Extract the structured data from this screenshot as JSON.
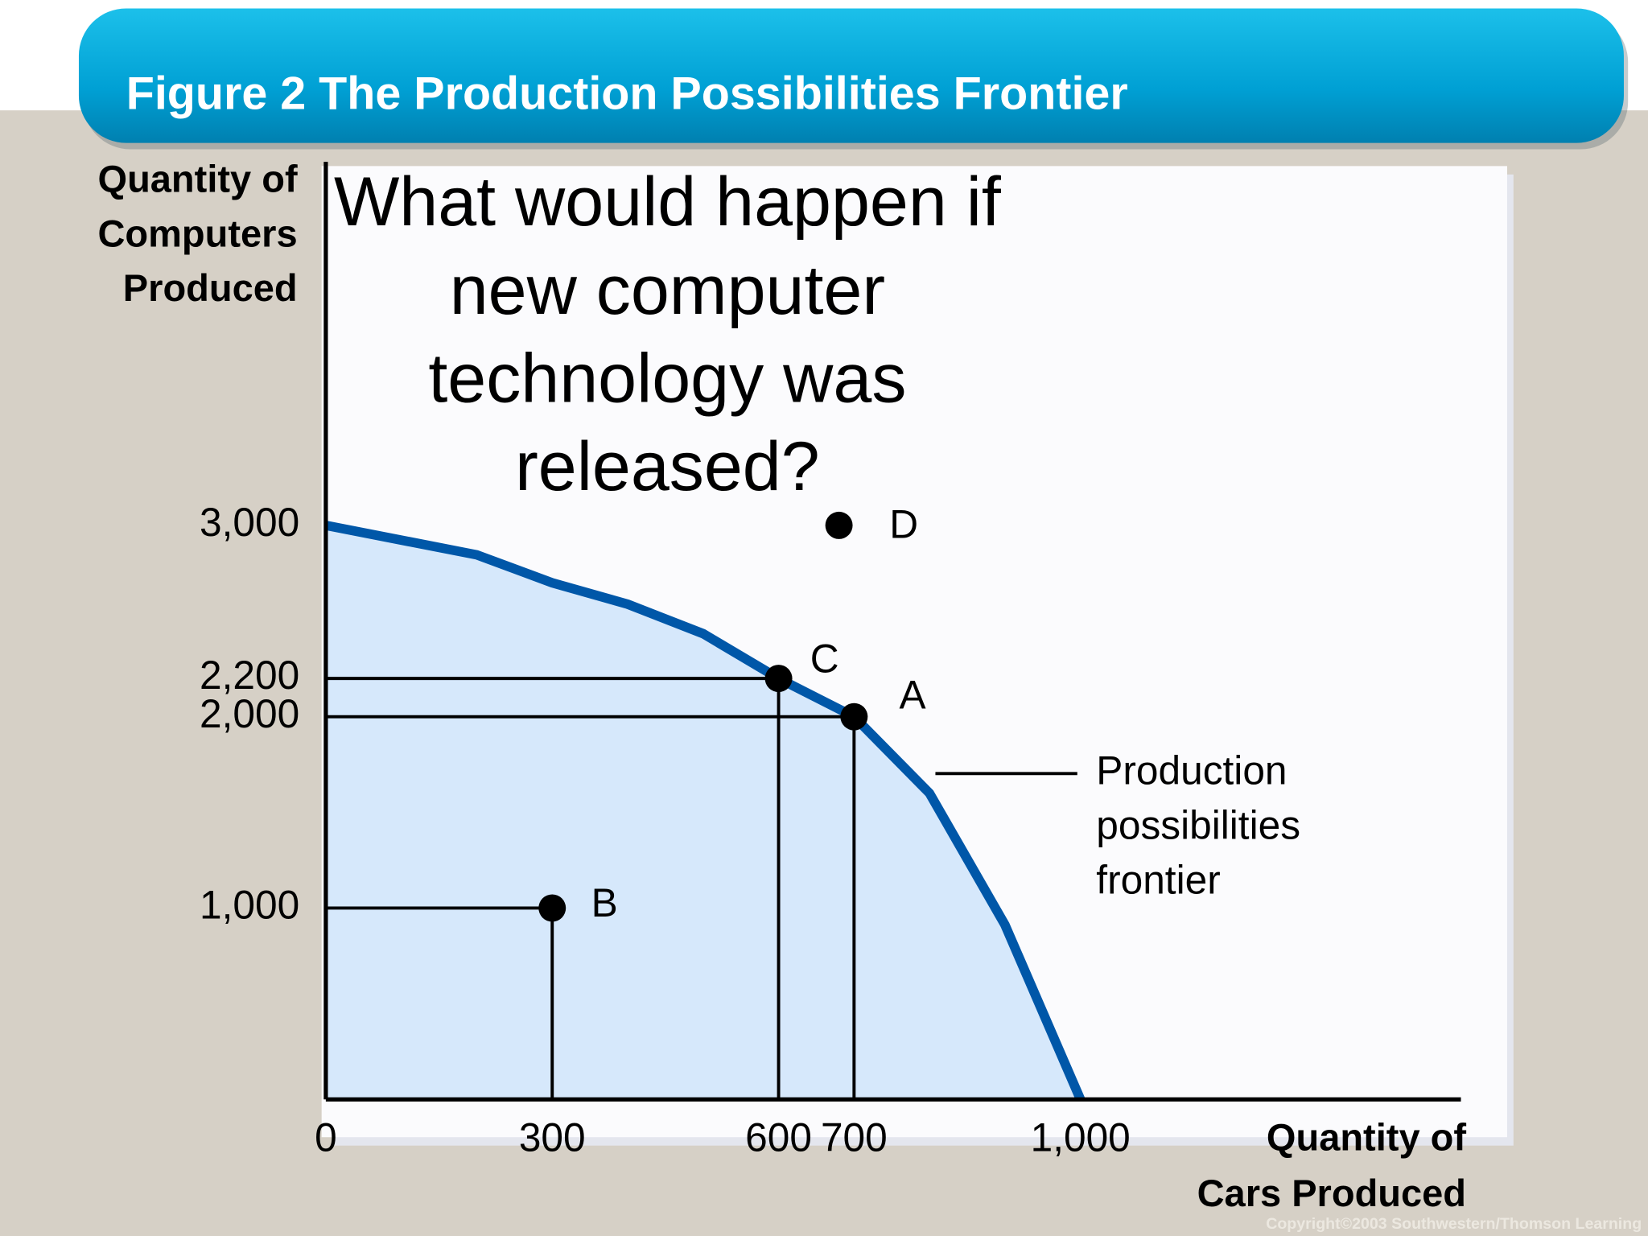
{
  "chart_data": {
    "type": "ppf",
    "title": "Figure 2 The Production Possibilities Frontier",
    "annotation": [
      "What would happen if",
      "new computer",
      "technology was",
      "released?"
    ],
    "y_label": [
      "Quantity of",
      "Computers",
      "Produced"
    ],
    "x_label": [
      "Quantity of",
      "Cars Produced"
    ],
    "frontier_label": [
      "Production",
      "possibilities",
      "frontier"
    ],
    "copyright": "Copyright©2003  Southwestern/Thomson Learning",
    "xlim": [
      0,
      1500
    ],
    "ylim": [
      0,
      4900
    ],
    "xticks": [
      0,
      300,
      600,
      700,
      {
        "value": 1000,
        "label": "1,000"
      }
    ],
    "yticks": [
      {
        "value": 1000,
        "label": "1,000"
      },
      {
        "value": 2000,
        "label": "2,000"
      },
      {
        "value": 2200,
        "label": "2,200"
      },
      {
        "value": 3000,
        "label": "3,000"
      }
    ],
    "frontier": {
      "color": "#0057a8",
      "fill": "#d6e8fb",
      "x": [
        0,
        200,
        300,
        400,
        500,
        600,
        700,
        800,
        900,
        1000
      ],
      "values": [
        3000,
        2846,
        2700,
        2588,
        2434,
        2200,
        2000,
        1600,
        912,
        0
      ]
    },
    "points": [
      {
        "label": "A",
        "x": 700,
        "y": 2000
      },
      {
        "label": "B",
        "x": 300,
        "y": 1000
      },
      {
        "label": "C",
        "x": 600,
        "y": 2200
      },
      {
        "label": "D",
        "x": 680,
        "y": 3000
      }
    ]
  }
}
